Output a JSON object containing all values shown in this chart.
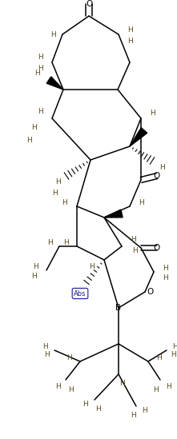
{
  "bg_color": "#ffffff",
  "line_color": "#000000",
  "h_color": "#5c4a1e",
  "label_color": "#1a1a8c",
  "fig_width": 2.21,
  "fig_height": 5.49,
  "dpi": 100,
  "xlim": [
    0,
    221
  ],
  "ylim": [
    0,
    549
  ]
}
